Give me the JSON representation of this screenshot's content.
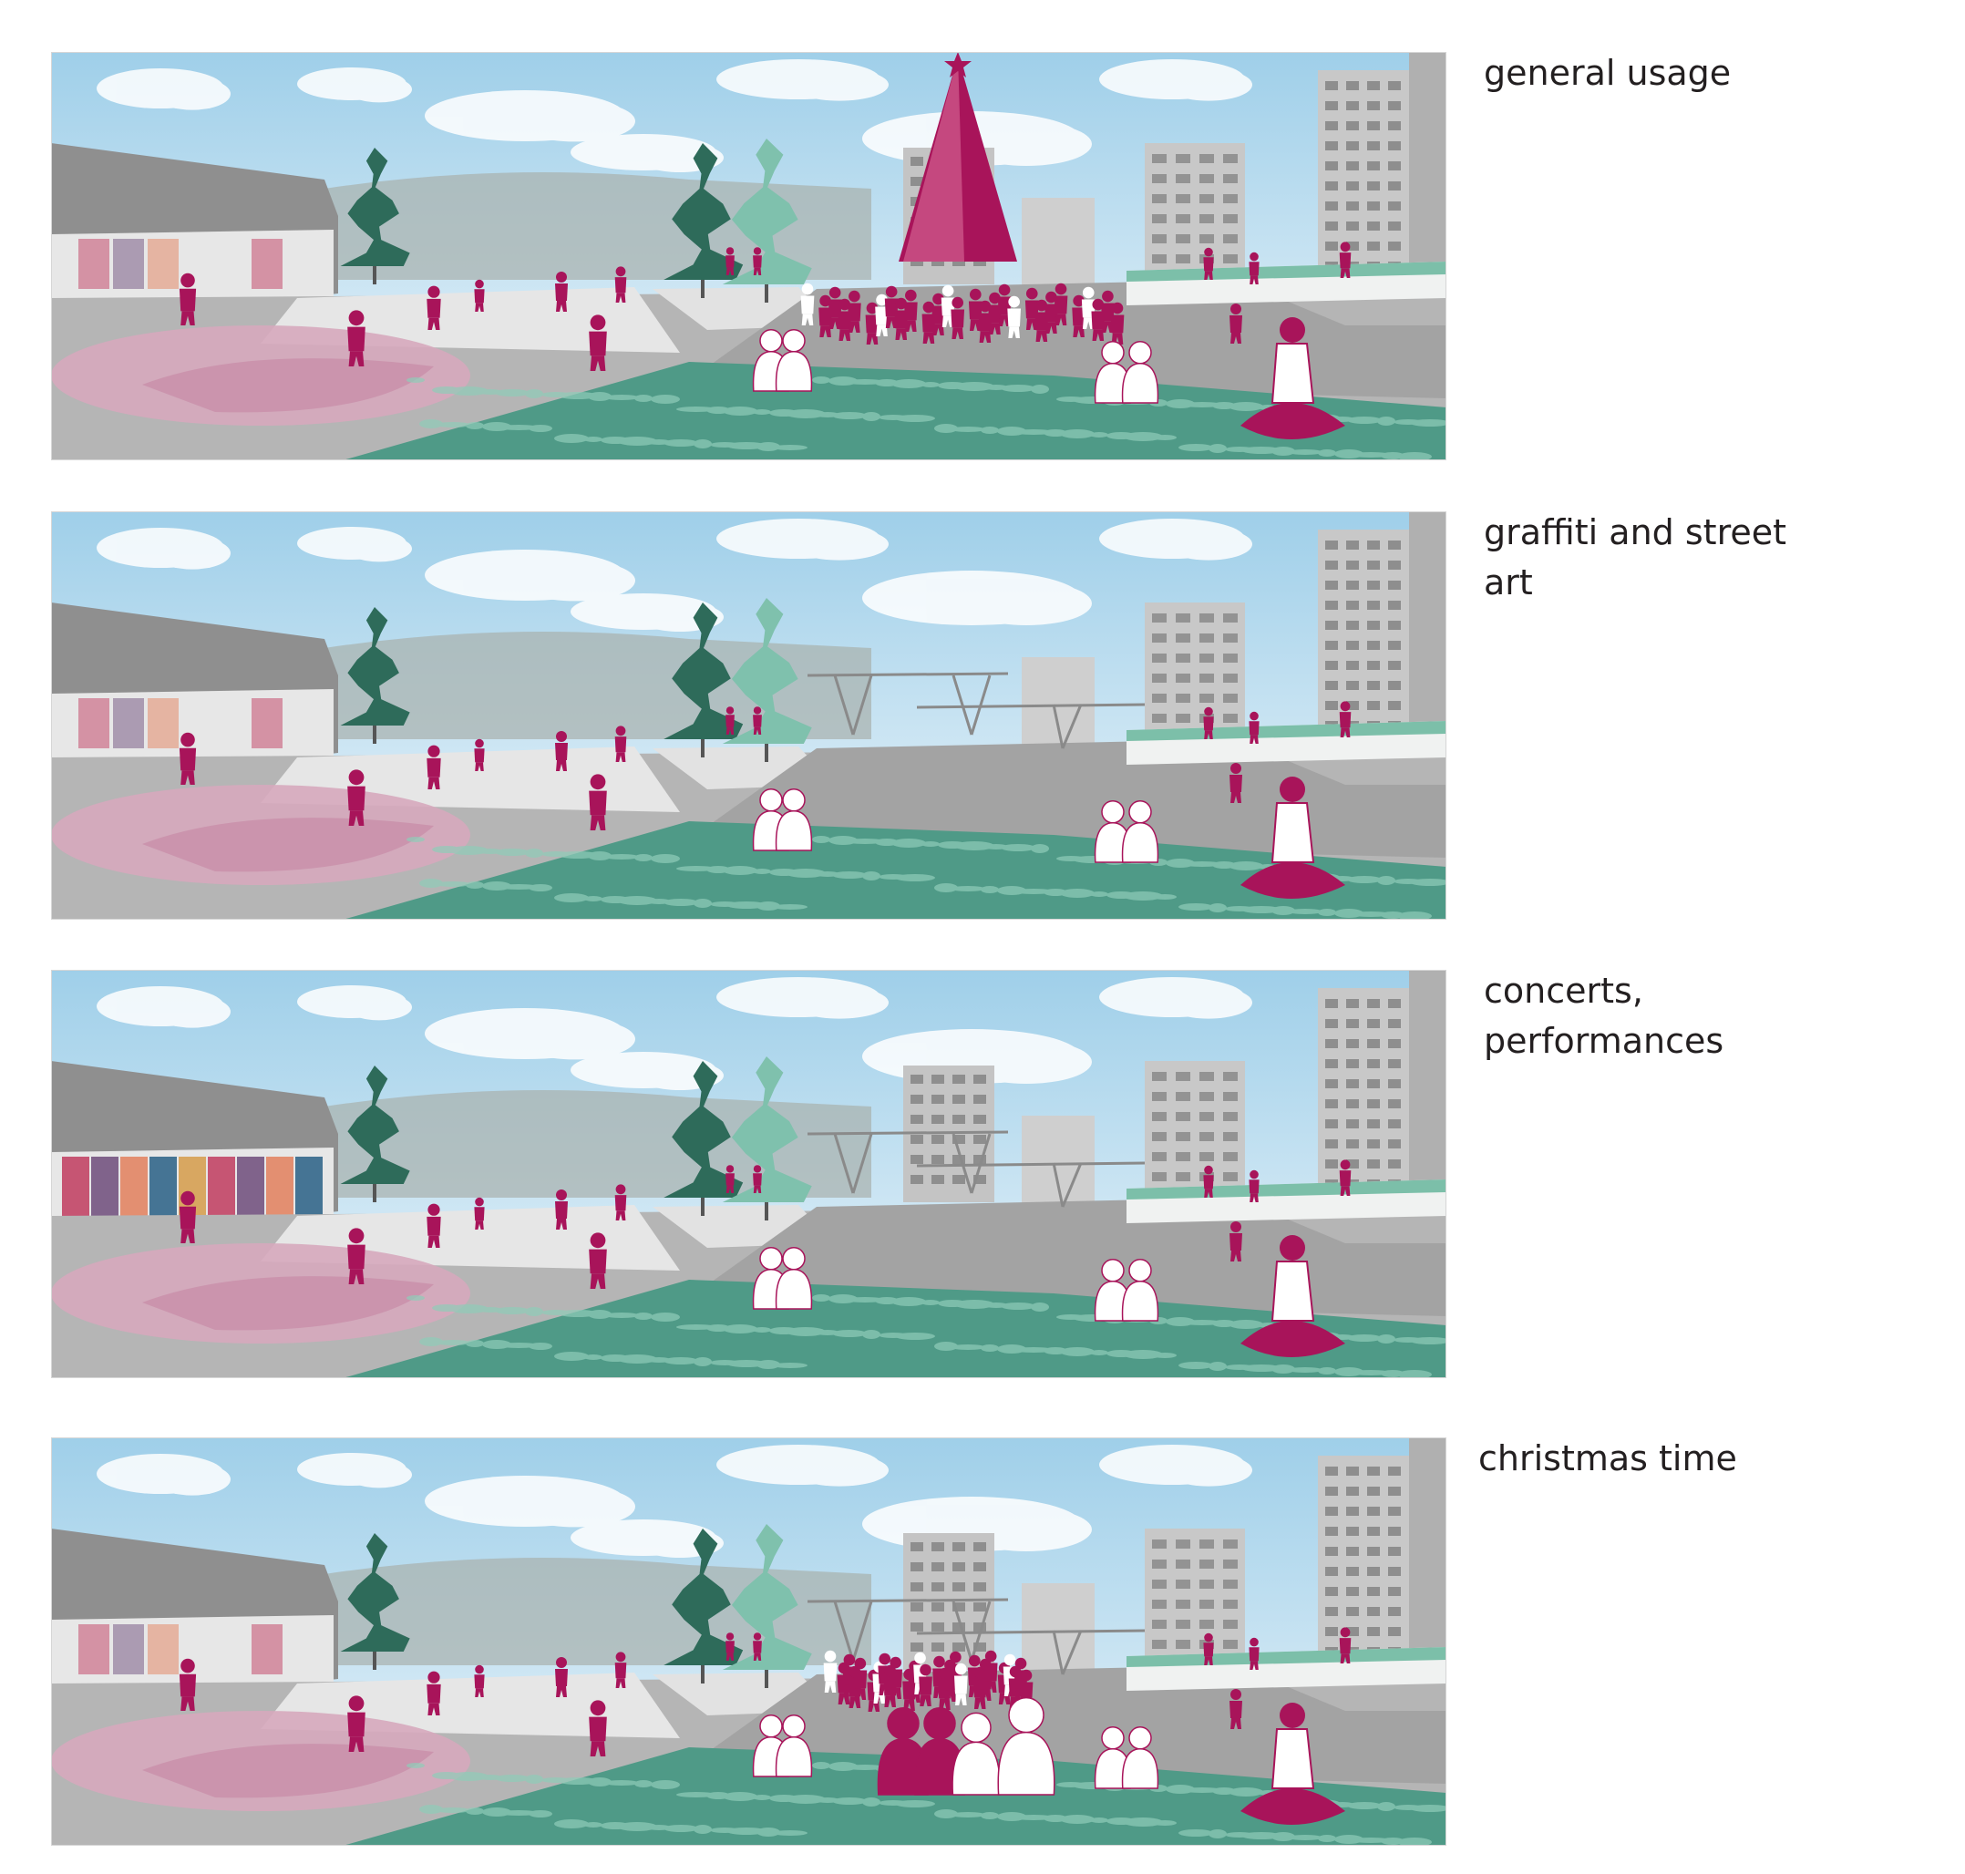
{
  "panels": [
    {
      "id": "general-usage",
      "caption": "general usage",
      "features": [
        "christmas-tree",
        "crowd"
      ]
    },
    {
      "id": "graffiti",
      "caption": "graffiti and street art",
      "features": [
        "mural-wall",
        "pavilion"
      ]
    },
    {
      "id": "concerts",
      "caption": "concerts, performances",
      "features": [
        "pavilion"
      ]
    },
    {
      "id": "christmas",
      "caption": "christmas time",
      "features": [
        "pavilion",
        "crowd",
        "audience"
      ]
    }
  ],
  "colors": {
    "accent": "#a8145a",
    "pink_plaza": "#d6a9bd",
    "teal_grass": "#4f9a87",
    "teal_light": "#8fcdb9",
    "tree_dark": "#2e6b5a",
    "sky": "#bcdcef",
    "pavement": "#b5b5b5",
    "building": "#c8c8c8"
  }
}
